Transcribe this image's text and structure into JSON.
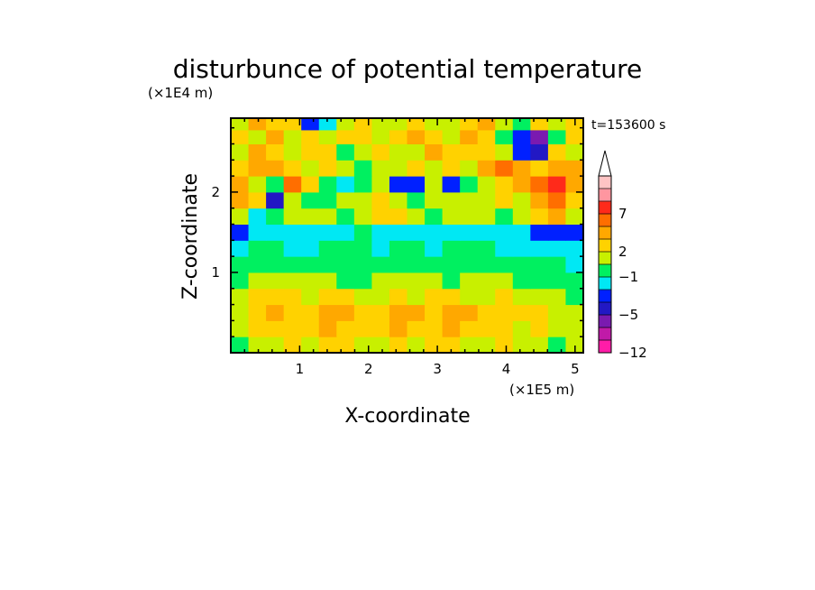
{
  "chart_data": {
    "type": "heatmap",
    "title": "disturbunce of potential temperature",
    "xlabel": "X-coordinate",
    "ylabel": "Z-coordinate",
    "x_unit": "(×1E5 m)",
    "y_unit": "(×1E4 m)",
    "time_label": "t=153600 s",
    "xlim": [
      0,
      5.12
    ],
    "ylim": [
      0,
      2.92
    ],
    "x_ticks": [
      "1",
      "2",
      "3",
      "4",
      "5"
    ],
    "y_ticks": [
      "1",
      "2"
    ],
    "colorbar": {
      "tick_labels": [
        "7",
        "2",
        "-1",
        "-5",
        "-12"
      ],
      "extend": "max",
      "colors": [
        "#ff1ca8",
        "#c01aa8",
        "#7a1ab0",
        "#2218c4",
        "#0020ff",
        "#00e8f4",
        "#00f060",
        "#c8f000",
        "#ffd200",
        "#ffa800",
        "#ff6e00",
        "#ff2a1a",
        "#ff96a0",
        "#ffc4c4"
      ]
    },
    "rows": [
      {
        "z": 0.1,
        "values": [
          0,
          1,
          1,
          2,
          1,
          2,
          2,
          1,
          1,
          2,
          1,
          2,
          2,
          1,
          1,
          2,
          1,
          1,
          0,
          1
        ]
      },
      {
        "z": 0.3,
        "values": [
          1,
          2,
          2,
          2,
          2,
          3,
          2,
          2,
          2,
          3,
          2,
          2,
          3,
          2,
          2,
          2,
          1,
          2,
          1,
          1
        ]
      },
      {
        "z": 0.5,
        "values": [
          1,
          2,
          3,
          2,
          2,
          3,
          3,
          2,
          2,
          3,
          3,
          2,
          3,
          3,
          2,
          2,
          2,
          2,
          1,
          1
        ]
      },
      {
        "z": 0.7,
        "values": [
          1,
          2,
          2,
          2,
          1,
          2,
          2,
          1,
          1,
          2,
          1,
          2,
          2,
          1,
          1,
          2,
          1,
          1,
          1,
          0
        ]
      },
      {
        "z": 0.9,
        "values": [
          0,
          1,
          1,
          1,
          1,
          1,
          0,
          0,
          1,
          1,
          1,
          1,
          0,
          1,
          1,
          1,
          0,
          0,
          0,
          0
        ]
      },
      {
        "z": 1.1,
        "values": [
          0,
          0,
          0,
          0,
          0,
          0,
          0,
          0,
          0,
          0,
          0,
          0,
          0,
          0,
          0,
          0,
          0,
          0,
          0,
          -1
        ]
      },
      {
        "z": 1.3,
        "values": [
          -1,
          0,
          0,
          -1,
          -1,
          0,
          0,
          0,
          -1,
          0,
          0,
          -1,
          0,
          0,
          0,
          -1,
          -1,
          -1,
          -1,
          -1
        ]
      },
      {
        "z": 1.5,
        "values": [
          -3,
          -1,
          -1,
          -1,
          -1,
          -1,
          -1,
          0,
          -1,
          -1,
          -1,
          -1,
          -1,
          -1,
          -1,
          -1,
          -1,
          -2,
          -3,
          -3
        ]
      },
      {
        "z": 1.7,
        "values": [
          1,
          -1,
          0,
          1,
          1,
          1,
          0,
          1,
          2,
          2,
          1,
          0,
          1,
          1,
          1,
          0,
          1,
          2,
          3,
          1
        ]
      },
      {
        "z": 1.9,
        "values": [
          3,
          2,
          -4,
          1,
          0,
          0,
          1,
          1,
          2,
          1,
          0,
          1,
          1,
          1,
          1,
          2,
          1,
          3,
          4,
          2
        ]
      },
      {
        "z": 2.1,
        "values": [
          3,
          1,
          0,
          4,
          2,
          0,
          -1,
          0,
          1,
          -2,
          -3,
          1,
          -2,
          0,
          1,
          2,
          3,
          4,
          5,
          3
        ]
      },
      {
        "z": 2.3,
        "values": [
          2,
          3,
          3,
          2,
          1,
          2,
          1,
          0,
          1,
          1,
          2,
          1,
          2,
          1,
          3,
          4,
          3,
          2,
          3,
          3
        ]
      },
      {
        "z": 2.5,
        "values": [
          1,
          3,
          2,
          1,
          2,
          2,
          0,
          1,
          2,
          1,
          1,
          3,
          2,
          2,
          2,
          1,
          -3,
          -5,
          2,
          1
        ]
      },
      {
        "z": 2.7,
        "values": [
          2,
          1,
          3,
          1,
          2,
          1,
          2,
          2,
          1,
          2,
          3,
          2,
          1,
          3,
          2,
          0,
          -2,
          -8,
          0,
          2
        ]
      },
      {
        "z": 2.85,
        "values": [
          1,
          3,
          2,
          2,
          -3,
          -1,
          1,
          2,
          1,
          1,
          2,
          1,
          1,
          2,
          3,
          1,
          0,
          2,
          1,
          2
        ]
      }
    ]
  }
}
